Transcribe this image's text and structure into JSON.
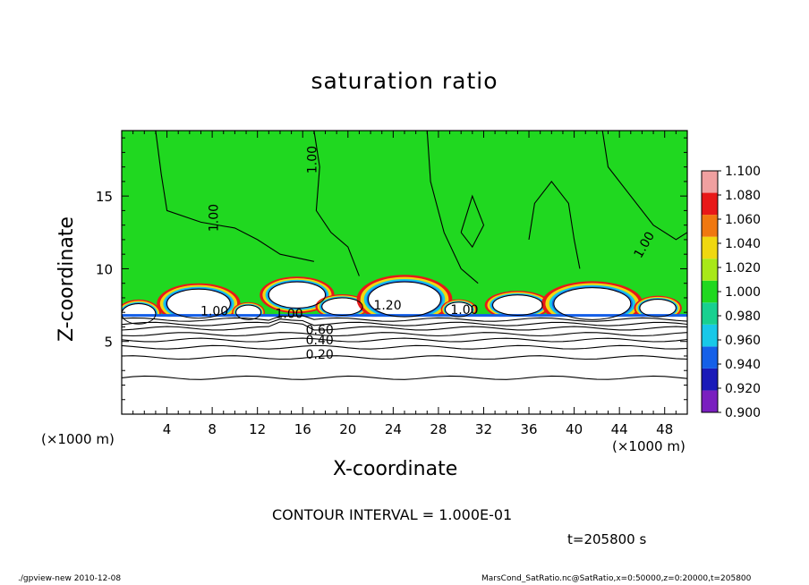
{
  "chart_data": {
    "type": "heatmap",
    "title": "saturation ratio",
    "xlabel": "X-coordinate",
    "ylabel": "Z-coordinate",
    "x_unit_left": "(×1000 m)",
    "x_unit_right": "(×1000 m)",
    "xlim": [
      0,
      50
    ],
    "ylim": [
      0,
      19.5
    ],
    "x_ticks": [
      4,
      8,
      12,
      16,
      20,
      24,
      28,
      32,
      36,
      40,
      44,
      48
    ],
    "x_tick_labels": [
      "4",
      "8",
      "12",
      "16",
      "20",
      "24",
      "28",
      "32",
      "36",
      "40",
      "44",
      "48"
    ],
    "y_ticks": [
      5,
      10,
      15
    ],
    "y_tick_labels": [
      "5",
      "10",
      "15"
    ],
    "colorbar": {
      "levels": [
        0.9,
        0.92,
        0.94,
        0.96,
        0.98,
        1.0,
        1.02,
        1.04,
        1.06,
        1.08,
        1.1
      ],
      "labels": [
        "0.900",
        "0.920",
        "0.940",
        "0.960",
        "0.980",
        "1.000",
        "1.020",
        "1.040",
        "1.060",
        "1.080",
        "1.100"
      ],
      "colors": [
        "#7a1fbf",
        "#1a1ab8",
        "#1560e8",
        "#18c8e8",
        "#18d090",
        "#20d820",
        "#a8e818",
        "#f0d810",
        "#f07810",
        "#e81818",
        "#f0a0a0"
      ]
    },
    "contour_labels": [
      "1.00",
      "1.00",
      "1.00",
      "1.00",
      "1.00",
      "1.20",
      "1.00",
      "0.60",
      "0.40",
      "0.20"
    ],
    "contour_lines_z": [
      2.5,
      3.9,
      4.6,
      5.1,
      5.5,
      5.9,
      6.2,
      6.5
    ],
    "saturated_layer_base_z": 6.7,
    "background_field_value": 1.0
  },
  "annotations": {
    "contour_interval": "CONTOUR INTERVAL = 1.000E-01",
    "time": "t=205800 s",
    "footer_left": "./gpview-new   2010-12-08",
    "footer_right": "MarsCond_SatRatio.nc@SatRatio,x=0:50000,z=0:20000,t=205800"
  }
}
